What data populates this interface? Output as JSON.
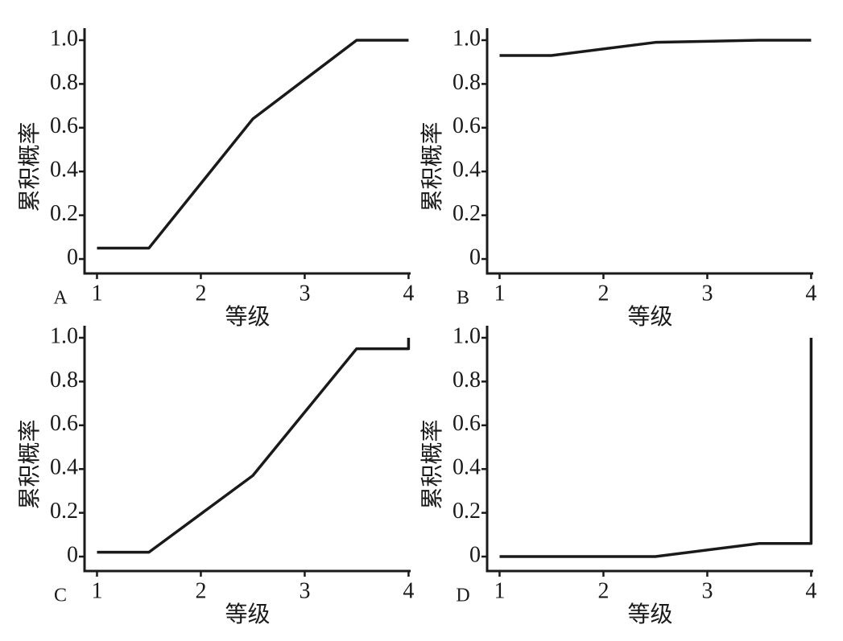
{
  "chart_data": [
    {
      "type": "line",
      "label": "A",
      "xlabel": "等级",
      "ylabel": "累积概率",
      "color": "#1a1a1a",
      "x": [
        1,
        1.5,
        2.5,
        3.5,
        4
      ],
      "values": [
        0.05,
        0.05,
        0.64,
        1.0,
        1.0
      ],
      "xlim": [
        0.88,
        4.02
      ],
      "ylim": [
        -0.066,
        1.055
      ],
      "xticks": [
        1,
        2,
        3,
        4
      ],
      "yticks": [
        0,
        0.2,
        0.4,
        0.6,
        0.8,
        {
          "value": 1,
          "label": "1.0"
        }
      ]
    },
    {
      "type": "line",
      "label": "B",
      "xlabel": "等级",
      "ylabel": "累积概率",
      "color": "#1a1a1a",
      "x": [
        1,
        1.5,
        2.5,
        3.5,
        4
      ],
      "values": [
        0.93,
        0.93,
        0.99,
        1.0,
        1.0
      ],
      "xlim": [
        0.88,
        4.02
      ],
      "ylim": [
        -0.066,
        1.055
      ],
      "xticks": [
        1,
        2,
        3,
        4
      ],
      "yticks": [
        0,
        0.2,
        0.4,
        0.6,
        0.8,
        {
          "value": 1,
          "label": "1.0"
        }
      ]
    },
    {
      "type": "line",
      "label": "C",
      "xlabel": "等级",
      "ylabel": "累积概率",
      "color": "#1a1a1a",
      "x": [
        1,
        1.5,
        2.5,
        3.5,
        4,
        4
      ],
      "values": [
        0.02,
        0.02,
        0.37,
        0.95,
        0.95,
        1.0
      ],
      "xlim": [
        0.88,
        4.02
      ],
      "ylim": [
        -0.066,
        1.055
      ],
      "xticks": [
        1,
        2,
        3,
        4
      ],
      "yticks": [
        0,
        0.2,
        0.4,
        0.6,
        0.8,
        {
          "value": 1,
          "label": "1.0"
        }
      ]
    },
    {
      "type": "line",
      "label": "D",
      "xlabel": "等级",
      "ylabel": "累积概率",
      "color": "#1a1a1a",
      "x": [
        1,
        2.5,
        3.5,
        4,
        4
      ],
      "values": [
        0,
        0,
        0.06,
        0.06,
        1.0
      ],
      "xlim": [
        0.88,
        4.02
      ],
      "ylim": [
        -0.066,
        1.055
      ],
      "xticks": [
        1,
        2,
        3,
        4
      ],
      "yticks": [
        0,
        0.2,
        0.4,
        0.6,
        0.8,
        {
          "value": 1,
          "label": "1.0"
        }
      ]
    }
  ]
}
